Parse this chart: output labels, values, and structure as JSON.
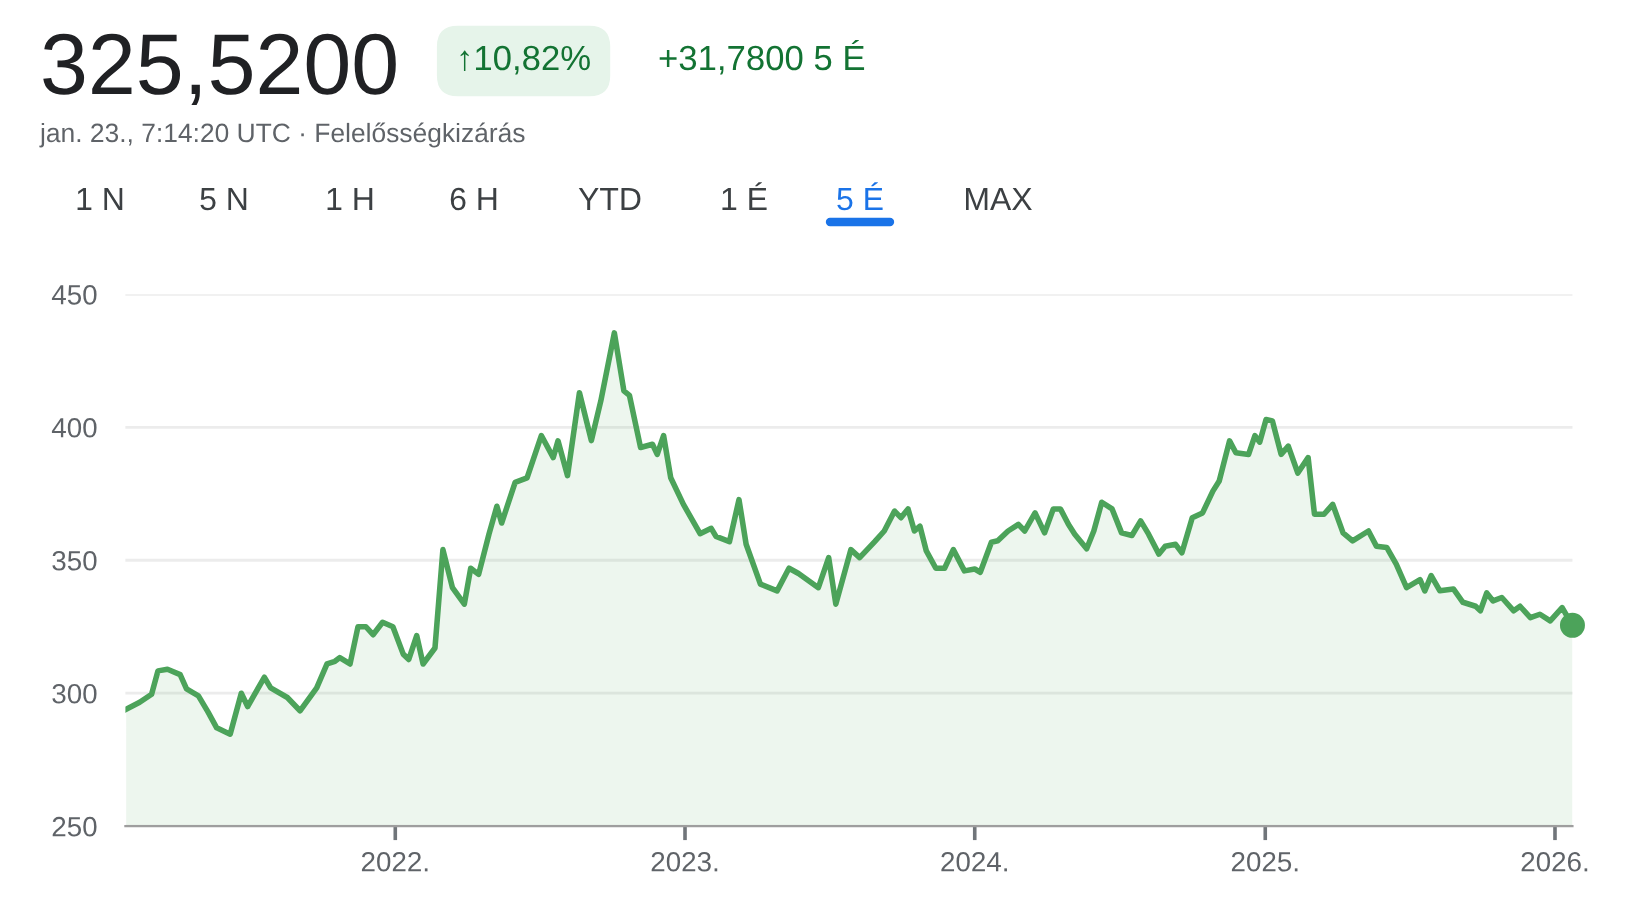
{
  "chart_data": {
    "type": "area",
    "title": "325,5200",
    "subtitle": "jan. 23., 7:14:20 UTC · Felelősségkizárás",
    "annotations": [
      "↑10,82%",
      "+31,7800 5 É",
      "1 N",
      "5 N",
      "1 H",
      "6 H",
      "YTD",
      "1 É",
      "5 É",
      "MAX"
    ],
    "x": [
      "2021-01-27",
      "2021-02-13",
      "2021-02-28",
      "2021-03-08",
      "2021-03-20",
      "2021-04-05",
      "2021-04-13",
      "2021-04-28",
      "2021-05-10",
      "2021-05-21",
      "2021-06-07",
      "2021-06-21",
      "2021-06-29",
      "2021-07-20",
      "2021-07-28",
      "2021-08-18",
      "2021-09-03",
      "2021-09-24",
      "2021-10-07",
      "2021-10-17",
      "2021-10-23",
      "2021-11-05",
      "2021-11-15",
      "2021-11-25",
      "2021-12-04",
      "2021-12-16",
      "2021-12-29",
      "2022-01-11",
      "2022-01-18",
      "2022-01-28",
      "2022-02-05",
      "2022-02-20",
      "2022-03-02",
      "2022-03-14",
      "2022-03-29",
      "2022-04-06",
      "2022-04-16",
      "2022-04-29",
      "2022-05-09",
      "2022-05-15",
      "2022-06-01",
      "2022-06-16",
      "2022-07-04",
      "2022-07-19",
      "2022-07-25",
      "2022-08-06",
      "2022-08-21",
      "2022-09-05",
      "2022-09-17",
      "2022-10-04",
      "2022-10-16",
      "2022-10-23",
      "2022-11-06",
      "2022-11-21",
      "2022-11-27",
      "2022-12-05",
      "2022-12-14",
      "2022-12-30",
      "2023-01-20",
      "2023-02-03",
      "2023-02-09",
      "2023-02-26",
      "2023-03-10",
      "2023-03-19",
      "2023-04-06",
      "2023-04-27",
      "2023-05-12",
      "2023-05-24",
      "2023-06-18",
      "2023-07-01",
      "2023-07-10",
      "2023-07-29",
      "2023-08-09",
      "2023-08-28",
      "2023-09-09",
      "2023-09-22",
      "2023-09-30",
      "2023-10-09",
      "2023-10-17",
      "2023-10-24",
      "2023-11-01",
      "2023-11-13",
      "2023-11-24",
      "2023-12-05",
      "2023-12-19",
      "2024-01-01",
      "2024-01-08",
      "2024-01-22",
      "2024-01-30",
      "2024-02-12",
      "2024-02-25",
      "2024-03-04",
      "2024-03-17",
      "2024-03-29",
      "2024-04-09",
      "2024-04-18",
      "2024-04-28",
      "2024-05-06",
      "2024-05-21",
      "2024-05-30",
      "2024-06-09",
      "2024-06-22",
      "2024-07-04",
      "2024-07-17",
      "2024-07-28",
      "2024-08-07",
      "2024-08-20",
      "2024-08-28",
      "2024-09-10",
      "2024-09-18",
      "2024-10-01",
      "2024-10-14",
      "2024-10-27",
      "2024-11-04",
      "2024-11-17",
      "2024-11-25",
      "2024-12-11",
      "2024-12-19",
      "2024-12-25",
      "2025-01-02",
      "2025-01-10",
      "2025-01-21",
      "2025-01-30",
      "2025-02-11",
      "2025-02-24",
      "2025-03-04",
      "2025-03-16",
      "2025-03-27",
      "2025-04-09",
      "2025-04-21",
      "2025-05-11",
      "2025-05-21",
      "2025-06-03",
      "2025-06-15",
      "2025-06-28",
      "2025-07-15",
      "2025-07-21",
      "2025-07-29",
      "2025-08-09",
      "2025-08-26",
      "2025-09-07",
      "2025-09-23",
      "2025-09-29",
      "2025-10-07",
      "2025-10-15",
      "2025-10-26",
      "2025-11-10",
      "2025-11-18",
      "2025-12-01",
      "2025-12-13",
      "2025-12-26",
      "2026-01-10",
      "2026-01-23"
    ],
    "series": [
      {
        "color": "#4ca35a",
        "values": [
          294,
          296.6,
          299.6,
          308.4,
          309,
          307,
          301.6,
          299,
          293,
          287,
          284.6,
          300,
          295,
          306,
          302,
          298.4,
          293.4,
          302,
          311,
          312,
          313.4,
          311,
          325,
          325,
          322,
          326.7,
          325,
          314.7,
          312.7,
          321.7,
          311,
          317,
          354,
          339.7,
          333.5,
          347,
          344.7,
          359.8,
          370.3,
          364,
          379.3,
          381,
          396.9,
          388.6,
          394.9,
          381.8,
          413,
          395,
          410,
          435.5,
          413.7,
          412,
          392.4,
          393.6,
          389.8,
          396.9,
          381,
          371,
          360,
          362,
          359,
          357,
          372.8,
          356,
          341,
          338.5,
          347,
          345,
          339.7,
          351,
          333.5,
          354,
          351,
          357,
          361,
          368.5,
          366,
          369.3,
          361,
          362.8,
          353.5,
          347,
          347,
          354,
          346,
          346.7,
          345.5,
          356.8,
          357.3,
          361,
          363.5,
          361,
          367.8,
          360.3,
          369.3,
          369.3,
          363.5,
          359.8,
          354.3,
          361,
          371.8,
          369.3,
          360.3,
          359.3,
          364.8,
          359.8,
          352.3,
          355.3,
          356,
          352.8,
          366,
          367.8,
          376,
          379.8,
          394.9,
          390.4,
          389.8,
          396.9,
          394.4,
          402.9,
          402.4,
          389.8,
          392.9,
          382.8,
          388.6,
          367.3,
          367.3,
          371,
          360.3,
          357.3,
          361,
          355.3,
          354.8,
          348.5,
          339.7,
          342.7,
          338.5,
          344.2,
          338.5,
          339.2,
          334.2,
          332.7,
          331,
          337.7,
          334.7,
          336,
          331,
          332.7,
          328.4,
          329.7,
          327.2,
          332.2,
          325.52
        ]
      }
    ],
    "xlim": [
      "2021-01-26",
      "2026-01-23"
    ],
    "xticks": [
      {
        "value": "2022-01-01",
        "label": "2022."
      },
      {
        "value": "2023-01-01",
        "label": "2023."
      },
      {
        "value": "2024-01-01",
        "label": "2024."
      },
      {
        "value": "2025-01-01",
        "label": "2025."
      },
      {
        "value": "2026-01-01",
        "label": "2026."
      }
    ],
    "ylim": [
      250,
      450
    ],
    "yticks": [
      250,
      300,
      350,
      400,
      450
    ],
    "grid": "y",
    "marker": "none",
    "line_style": "solid"
  }
}
